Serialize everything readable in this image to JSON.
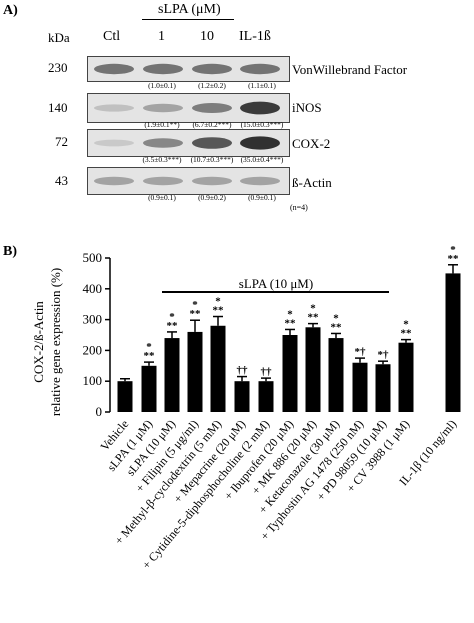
{
  "panel_a": {
    "label": "A)",
    "treatment_header": "sLPA (μM)",
    "kda_label": "kDa",
    "lanes": [
      "Ctl",
      "1",
      "10",
      "IL-1ß"
    ],
    "n_note": "(n=4)",
    "blots": [
      {
        "mw": "230",
        "protein": "VonWillebrand Factor",
        "quant": [
          "(1.0±0.1)",
          "(1.2±0.2)",
          "(1.1±0.1)"
        ],
        "intensity": [
          0.55,
          0.55,
          0.55,
          0.55
        ]
      },
      {
        "mw": "140",
        "protein": "iNOS",
        "quant": [
          "(1.9±0.1**)",
          "(6.7±0.2***)",
          "(15.0±0.3***)"
        ],
        "intensity": [
          0.15,
          0.3,
          0.5,
          0.85
        ]
      },
      {
        "mw": "72",
        "protein": "COX-2",
        "quant": [
          "(3.5±0.3***)",
          "(10.7±0.3***)",
          "(35.0±0.4***)"
        ],
        "intensity": [
          0.1,
          0.45,
          0.7,
          0.9
        ]
      },
      {
        "mw": "43",
        "protein": "ß-Actin",
        "quant": [
          "(0.9±0.1)",
          "(0.9±0.2)",
          "(0.9±0.1)"
        ],
        "intensity": [
          0.3,
          0.3,
          0.3,
          0.3
        ]
      }
    ]
  },
  "panel_b": {
    "label": "B)",
    "bracket_label": "sLPA (10 μM)"
  },
  "chart_data": {
    "type": "bar",
    "ylabel_line1": "COX-2/ß-Actin",
    "ylabel_line2": "relative gene expression (%)",
    "ylim": [
      0,
      500
    ],
    "yticks": [
      "0",
      "100",
      "200",
      "300",
      "400",
      "500"
    ],
    "categories": [
      "Vehicle",
      "sLPA (1 μM)",
      "sLPA (10 μM)",
      "+ Filipin (5 μg/ml)",
      "+ Methyl-β-cyclodextrin (5 mM)",
      "+ Mepacrine (20 μM)",
      "+ Cytidine-5-diphosphocholine (2 mM)",
      "+ Ibuprofen (20 μM)",
      "+ MK 886 (20 μM)",
      "+ Ketaconazole (30 μM)",
      "+ Typhostin AG 1478 (250 nM)",
      "+ PD 98059 (10 μM)",
      "+ CV 3988 (1 μM)",
      "IL-1β (10 ng/ml)"
    ],
    "values": [
      100,
      150,
      240,
      260,
      280,
      100,
      100,
      250,
      275,
      240,
      160,
      155,
      225,
      450
    ],
    "errors": [
      8,
      12,
      20,
      38,
      30,
      15,
      10,
      18,
      12,
      15,
      15,
      10,
      10,
      28
    ],
    "annotations_top": [
      "",
      "*",
      "*",
      "*",
      "*",
      "††",
      "††",
      "*",
      "*",
      "*",
      "*†",
      "*†",
      "*",
      "*"
    ],
    "annotations_bottom": [
      "",
      "**",
      "**",
      "**",
      "**",
      "",
      "",
      "**",
      "**",
      "**",
      "",
      "",
      "**",
      "**"
    ]
  }
}
